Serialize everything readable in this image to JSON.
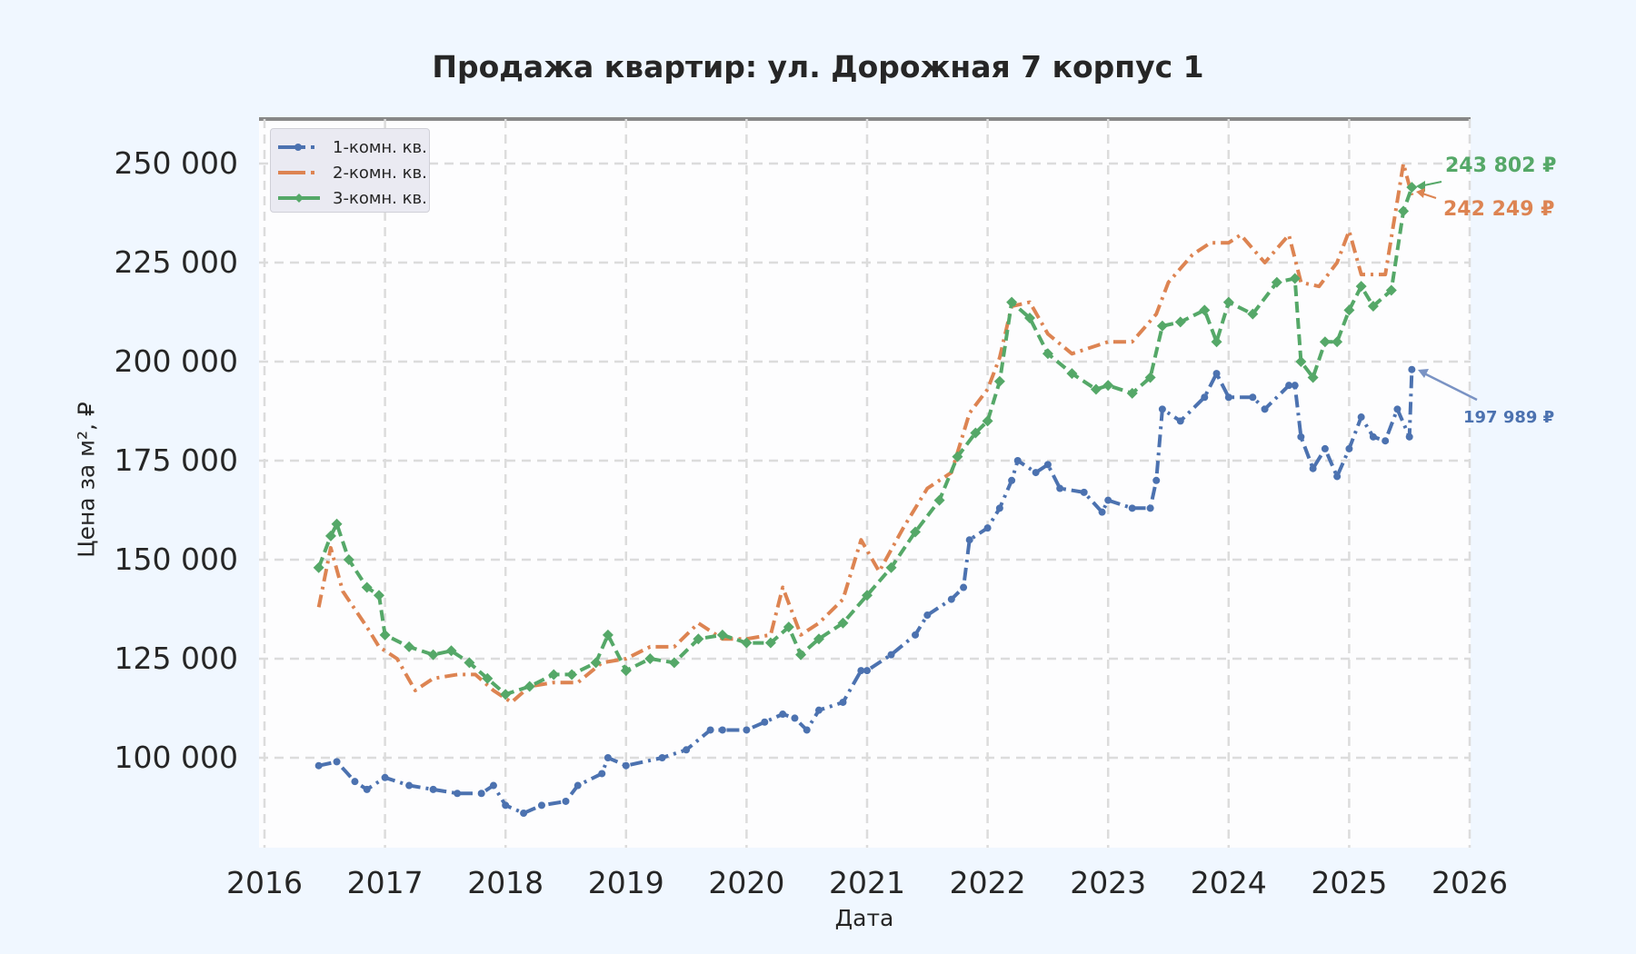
{
  "chart_data": {
    "type": "line",
    "title": "Продажа квартир: ул. Дорожная 7 корпус 1",
    "xlabel": "Дата",
    "ylabel": "Цена за м², ₽",
    "xlim": [
      2016,
      2026
    ],
    "ylim": [
      80000,
      260000
    ],
    "grid": true,
    "legend_position": "upper left",
    "x_ticks": [
      "2016",
      "2017",
      "2018",
      "2019",
      "2020",
      "2021",
      "2022",
      "2023",
      "2024",
      "2025",
      "2026"
    ],
    "y_ticks": [
      "100 000",
      "125 000",
      "150 000",
      "175 000",
      "200 000",
      "225 000",
      "250 000"
    ],
    "y_tick_values": [
      100000,
      125000,
      150000,
      175000,
      200000,
      225000,
      250000
    ],
    "series": [
      {
        "name": "1-комн. кв.",
        "color": "#4c72b0",
        "style": "dashdot",
        "marker": "pentagon",
        "x": [
          2016.45,
          2016.6,
          2016.75,
          2016.85,
          2017.0,
          2017.2,
          2017.4,
          2017.6,
          2017.8,
          2017.9,
          2018.0,
          2018.15,
          2018.3,
          2018.5,
          2018.6,
          2018.8,
          2018.85,
          2019.0,
          2019.3,
          2019.5,
          2019.7,
          2019.8,
          2020.0,
          2020.15,
          2020.3,
          2020.4,
          2020.5,
          2020.6,
          2020.8,
          2020.95,
          2021.0,
          2021.2,
          2021.4,
          2021.5,
          2021.7,
          2021.8,
          2021.85,
          2022.0,
          2022.1,
          2022.2,
          2022.25,
          2022.4,
          2022.5,
          2022.6,
          2022.8,
          2022.95,
          2023.0,
          2023.2,
          2023.35,
          2023.4,
          2023.45,
          2023.6,
          2023.8,
          2023.9,
          2024.0,
          2024.2,
          2024.3,
          2024.5,
          2024.55,
          2024.6,
          2024.7,
          2024.8,
          2024.9,
          2025.0,
          2025.1,
          2025.2,
          2025.3,
          2025.4,
          2025.5,
          2025.52
        ],
        "values": [
          98000,
          99000,
          94000,
          92000,
          95000,
          93000,
          92000,
          91000,
          91000,
          93000,
          88000,
          86000,
          88000,
          89000,
          93000,
          96000,
          100000,
          98000,
          100000,
          102000,
          107000,
          107000,
          107000,
          109000,
          111000,
          110000,
          107000,
          112000,
          114000,
          122000,
          122000,
          126000,
          131000,
          136000,
          140000,
          143000,
          155000,
          158000,
          163000,
          170000,
          175000,
          172000,
          174000,
          168000,
          167000,
          162000,
          165000,
          163000,
          163000,
          170000,
          188000,
          185000,
          191000,
          197000,
          191000,
          191000,
          188000,
          194000,
          194000,
          181000,
          173000,
          178000,
          171000,
          178000,
          186000,
          181000,
          180000,
          188000,
          181000,
          198000
        ],
        "last_value_label": "197 989 ₽"
      },
      {
        "name": "2-комн. кв.",
        "color": "#dd8452",
        "style": "dashdot",
        "marker": "none",
        "x": [
          2016.45,
          2016.55,
          2016.65,
          2016.85,
          2016.95,
          2017.1,
          2017.25,
          2017.4,
          2017.6,
          2017.75,
          2017.9,
          2018.05,
          2018.2,
          2018.4,
          2018.6,
          2018.8,
          2019.0,
          2019.2,
          2019.4,
          2019.6,
          2019.8,
          2020.0,
          2020.2,
          2020.3,
          2020.45,
          2020.6,
          2020.8,
          2020.95,
          2021.1,
          2021.3,
          2021.5,
          2021.7,
          2021.85,
          2022.0,
          2022.1,
          2022.2,
          2022.35,
          2022.5,
          2022.7,
          2022.9,
          2023.0,
          2023.2,
          2023.4,
          2023.5,
          2023.7,
          2023.85,
          2024.0,
          2024.1,
          2024.3,
          2024.5,
          2024.6,
          2024.75,
          2024.9,
          2025.0,
          2025.1,
          2025.3,
          2025.45,
          2025.52
        ],
        "values": [
          138000,
          153000,
          142000,
          133000,
          128000,
          125000,
          117000,
          120000,
          121000,
          121000,
          117000,
          114000,
          118000,
          119000,
          119000,
          124000,
          125000,
          128000,
          128000,
          134000,
          130000,
          130000,
          131000,
          143000,
          131000,
          134000,
          140000,
          155000,
          147000,
          158000,
          168000,
          172000,
          187000,
          193000,
          201000,
          214000,
          215000,
          207000,
          202000,
          204000,
          205000,
          205000,
          212000,
          220000,
          227000,
          230000,
          230000,
          232000,
          225000,
          232000,
          220000,
          219000,
          225000,
          233000,
          222000,
          222000,
          250000,
          242000
        ],
        "last_value_label": "242 249 ₽"
      },
      {
        "name": "3-комн. кв.",
        "color": "#55a868",
        "style": "dashed",
        "marker": "diamond",
        "x": [
          2016.45,
          2016.55,
          2016.6,
          2016.7,
          2016.85,
          2016.95,
          2017.0,
          2017.2,
          2017.4,
          2017.55,
          2017.7,
          2017.85,
          2018.0,
          2018.2,
          2018.4,
          2018.55,
          2018.75,
          2018.85,
          2019.0,
          2019.2,
          2019.4,
          2019.6,
          2019.8,
          2020.0,
          2020.2,
          2020.35,
          2020.45,
          2020.6,
          2020.8,
          2021.0,
          2021.2,
          2021.4,
          2021.6,
          2021.75,
          2021.9,
          2022.0,
          2022.1,
          2022.2,
          2022.35,
          2022.5,
          2022.7,
          2022.9,
          2023.0,
          2023.2,
          2023.35,
          2023.45,
          2023.6,
          2023.8,
          2023.9,
          2024.0,
          2024.2,
          2024.4,
          2024.55,
          2024.6,
          2024.7,
          2024.8,
          2024.9,
          2025.0,
          2025.1,
          2025.2,
          2025.35,
          2025.45,
          2025.52
        ],
        "values": [
          148000,
          156000,
          159000,
          150000,
          143000,
          141000,
          131000,
          128000,
          126000,
          127000,
          124000,
          120000,
          116000,
          118000,
          121000,
          121000,
          124000,
          131000,
          122000,
          125000,
          124000,
          130000,
          131000,
          129000,
          129000,
          133000,
          126000,
          130000,
          134000,
          141000,
          148000,
          157000,
          165000,
          176000,
          182000,
          185000,
          195000,
          215000,
          211000,
          202000,
          197000,
          193000,
          194000,
          192000,
          196000,
          209000,
          210000,
          213000,
          205000,
          215000,
          212000,
          220000,
          221000,
          200000,
          196000,
          205000,
          205000,
          213000,
          219000,
          214000,
          218000,
          238000,
          244000
        ],
        "last_value_label": "243 802 ₽"
      }
    ],
    "annotations": [
      {
        "text": "243 802 ₽",
        "series": "3-комн. кв.",
        "color": "#55a868"
      },
      {
        "text": "242 249 ₽",
        "series": "2-комн. кв.",
        "color": "#dd8452"
      },
      {
        "text": "197 989 ₽",
        "series": "1-комн. кв.",
        "color": "#4c72b0"
      }
    ]
  }
}
